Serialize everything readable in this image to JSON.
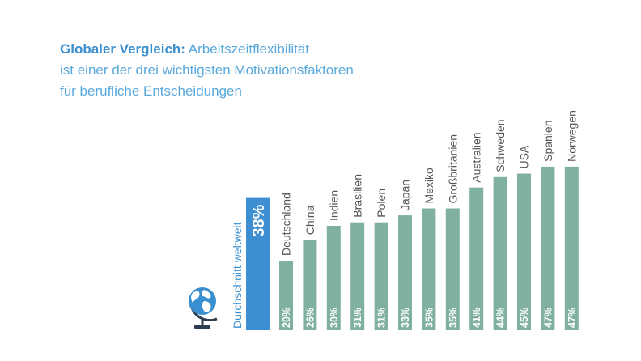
{
  "title": {
    "part1_bold": "Globaler Vergleich:",
    "part1_rest": " Arbeitszeitflexibilität",
    "line2": "ist einer der drei wichtigsten Motivationsfaktoren",
    "line3": "für berufliche Entscheidungen"
  },
  "colors": {
    "bar": "#7fb0a2",
    "average_bar": "#3e8fd1",
    "title": "#5aa9dc",
    "globe_land": "#ffffff",
    "globe_water": "#3a8fd0",
    "globe_stand": "#2c3e50"
  },
  "icons": {
    "globe": "globe-icon"
  },
  "chart_data": {
    "type": "bar",
    "average": {
      "label": "Durchschnitt weltweit",
      "value": 38,
      "value_label": "38%"
    },
    "categories": [
      "Deutschland",
      "China",
      "Indien",
      "Brasilien",
      "Polen",
      "Japan",
      "Mexiko",
      "Großbritanien",
      "Australien",
      "Schweden",
      "USA",
      "Spanien",
      "Norwegen"
    ],
    "values": [
      20,
      26,
      30,
      31,
      31,
      33,
      35,
      35,
      41,
      44,
      45,
      47,
      47
    ],
    "value_labels": [
      "20%",
      "26%",
      "30%",
      "31%",
      "31%",
      "33%",
      "35%",
      "35%",
      "41%",
      "44%",
      "45%",
      "47%",
      "47%"
    ],
    "title": "Globaler Vergleich: Arbeitszeitflexibilität ist einer der drei wichtigsten Motivationsfaktoren für berufliche Entscheidungen",
    "xlabel": "",
    "ylabel": "",
    "ylim": [
      0,
      50
    ],
    "grid": false,
    "legend": "none"
  }
}
